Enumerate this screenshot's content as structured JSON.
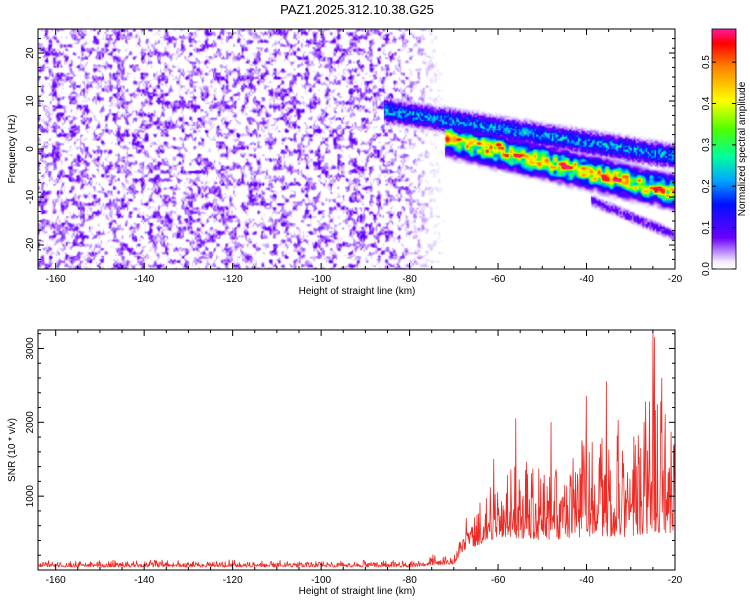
{
  "figure": {
    "title": "PAZ1.2025.312.10.38.G25"
  },
  "chart_data": [
    {
      "type": "heatmap",
      "xlabel": "Height of straight line (km)",
      "ylabel": "Frequency (Hz)",
      "xlim": [
        -164,
        -20
      ],
      "ylim": [
        -25,
        25
      ],
      "xticks": [
        -160,
        -140,
        -120,
        -100,
        -80,
        -60,
        -40,
        -20
      ],
      "xtick_labels": [
        "-160",
        "-140",
        "-120",
        "-100",
        "-80",
        "-60",
        "-40",
        "-20"
      ],
      "yticks": [
        -20,
        -10,
        0,
        10,
        20
      ],
      "ytick_labels": [
        "-20",
        "-10",
        "0",
        "10",
        "20"
      ],
      "colorbar": {
        "label": "Normalized spectral amplitude",
        "range": [
          0,
          0.58
        ],
        "ticks": [
          0.0,
          0.1,
          0.2,
          0.3,
          0.4,
          0.5
        ],
        "tick_labels": [
          "0.0",
          "0.1",
          "0.2",
          "0.3",
          "0.4",
          "0.5"
        ]
      },
      "features": [
        {
          "name": "noise-region",
          "x_range": [
            -164,
            -76
          ],
          "y_range": [
            -25,
            25
          ],
          "level": 0.07
        },
        {
          "name": "band-upper",
          "x_start": -85,
          "y_start": 8,
          "x_end": -20,
          "y_end": -1.5,
          "peak": 0.22
        },
        {
          "name": "band-main",
          "x_start": -71,
          "y_start": 2,
          "x_end": -20,
          "y_end": -9,
          "peak": 0.57
        },
        {
          "name": "band-lower",
          "x_start": -38,
          "y_start": -11,
          "x_end": -25,
          "y_end": -16,
          "peak": 0.09
        },
        {
          "name": "max-amplitude-point",
          "x": -60,
          "y": 1,
          "value": 0.57
        }
      ]
    },
    {
      "type": "line",
      "xlabel": "Height of straight line (km)",
      "ylabel": "SNR (10 * v/v)",
      "xlim": [
        -164,
        -20
      ],
      "ylim": [
        0,
        3250
      ],
      "xticks": [
        -160,
        -140,
        -120,
        -100,
        -80,
        -60,
        -40,
        -20
      ],
      "xtick_labels": [
        "-160",
        "-140",
        "-120",
        "-100",
        "-80",
        "-60",
        "-40",
        "-20"
      ],
      "yticks": [
        1000,
        2000,
        3000
      ],
      "ytick_labels": [
        "1000",
        "2000",
        "3000"
      ],
      "series": [
        {
          "name": "SNR",
          "color": "#ee2a24",
          "envelope": [
            {
              "x": -164,
              "base": 40,
              "spread": 100
            },
            {
              "x": -80,
              "base": 40,
              "spread": 110
            },
            {
              "x": -70,
              "base": 80,
              "spread": 200
            },
            {
              "x": -68,
              "base": 250,
              "spread": 400
            },
            {
              "x": -60,
              "base": 450,
              "spread": 1100
            },
            {
              "x": -50,
              "base": 400,
              "spread": 1400
            },
            {
              "x": -40,
              "base": 450,
              "spread": 1700
            },
            {
              "x": -30,
              "base": 450,
              "spread": 1900
            },
            {
              "x": -25,
              "base": 500,
              "spread": 2700
            },
            {
              "x": -20,
              "base": 500,
              "spread": 1600
            }
          ],
          "peaks": [
            {
              "x": -67.2,
              "y": 700
            },
            {
              "x": -61,
              "y": 1500
            },
            {
              "x": -56,
              "y": 2050
            },
            {
              "x": -48,
              "y": 2000
            },
            {
              "x": -40,
              "y": 2350
            },
            {
              "x": -35.5,
              "y": 2550
            },
            {
              "x": -25,
              "y": 3250
            },
            {
              "x": -24.7,
              "y": 3150
            },
            {
              "x": -23,
              "y": 2600
            }
          ]
        }
      ]
    }
  ]
}
